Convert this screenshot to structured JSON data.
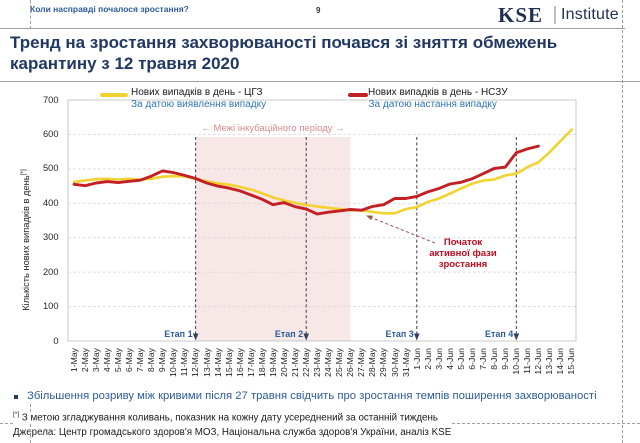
{
  "page": {
    "header_left": "Коли насправді почалося зростання?",
    "page_number": "9",
    "logo": {
      "kse": "KSE",
      "institute": "Institute"
    },
    "title": "Тренд на зростання захворюваності почався зі зняття обмежень карантину з 12 травня 2020",
    "bullet": "Збільшення розриву між кривими після 27 травня свідчить про зростання темпів поширення захворюваності",
    "footnote_marker": "[*]",
    "footnote": "З метою згладжування коливань, показник на кожну дату усереднений за останній тиждень",
    "sources": "Джерела: Центр громадського здоров'я МОЗ, Національна служба здоров'я України, аналіз KSE"
  },
  "chart_data": {
    "type": "line",
    "title": "",
    "ylabel": "Кількість нових випадків в день",
    "ylabel_marker": "[*]",
    "ylim": [
      0,
      700
    ],
    "ytick_step": 100,
    "grid": true,
    "legend_position": "top",
    "x": [
      "1-May",
      "2-May",
      "3-May",
      "4-May",
      "5-May",
      "6-May",
      "7-May",
      "8-May",
      "9-May",
      "10-May",
      "11-May",
      "12-May",
      "13-May",
      "14-May",
      "15-May",
      "16-May",
      "17-May",
      "18-May",
      "19-May",
      "20-May",
      "21-May",
      "22-May",
      "23-May",
      "24-May",
      "25-May",
      "26-May",
      "27-May",
      "28-May",
      "29-May",
      "30-May",
      "31-May",
      "1-Jun",
      "2-Jun",
      "3-Jun",
      "4-Jun",
      "5-Jun",
      "6-Jun",
      "7-Jun",
      "8-Jun",
      "9-Jun",
      "10-Jun",
      "11-Jun",
      "12-Jun",
      "13-Jun",
      "14-Jun",
      "15-Jun"
    ],
    "series": [
      {
        "name": "Нових випадків в день - ЦГЗ",
        "subtitle": "За датою виявлення випадку",
        "color": "#f2d230",
        "values": [
          462,
          466,
          470,
          471,
          469,
          471,
          469,
          471,
          477,
          479,
          478,
          471,
          464,
          458,
          454,
          448,
          440,
          429,
          417,
          408,
          401,
          395,
          391,
          387,
          383,
          380,
          379,
          375,
          371,
          371,
          383,
          389,
          404,
          414,
          428,
          443,
          457,
          466,
          469,
          481,
          486,
          505,
          519,
          548,
          581,
          614
        ]
      },
      {
        "name": "Нових випадків в день - НСЗУ",
        "subtitle": "За датою настання випадку",
        "color": "#c41f25",
        "values": [
          455,
          451,
          459,
          463,
          460,
          464,
          467,
          479,
          494,
          489,
          481,
          472,
          459,
          450,
          444,
          436,
          424,
          412,
          396,
          402,
          390,
          383,
          369,
          374,
          378,
          382,
          380,
          391,
          396,
          414,
          414,
          420,
          433,
          443,
          456,
          461,
          471,
          486,
          501,
          505,
          547,
          558,
          566,
          null,
          null,
          null
        ]
      }
    ],
    "band": {
      "from": "12-May",
      "to": "26-May",
      "label": "← Межі інкубаційного періоду →",
      "color": "#f8e7e7",
      "label_color": "#d98c8c"
    },
    "stages": [
      {
        "label": "Етап 1",
        "date": "12-May"
      },
      {
        "label": "Етап 2",
        "date": "22-May"
      },
      {
        "label": "Етап 3",
        "date": "1-Jun"
      },
      {
        "label": "Етап 4",
        "date": "10-Jun"
      }
    ],
    "annotation": {
      "text_lines": [
        "Початок",
        "активної фази",
        "зростання"
      ],
      "color": "#c00a1e"
    }
  }
}
